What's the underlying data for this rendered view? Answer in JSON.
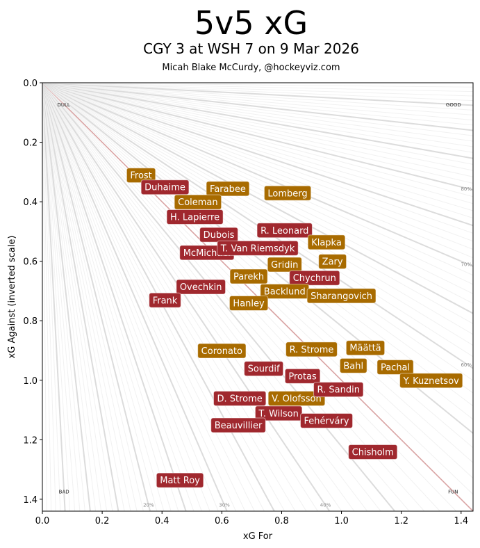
{
  "chart_data": {
    "type": "scatter",
    "title": "5v5 xG",
    "subtitle": "CGY 3 at WSH 7 on 9 Mar 2026",
    "credit": "Micah Blake McCurdy, @hockeyviz.com",
    "xlabel": "xG For",
    "ylabel": "xG Against (inverted scale)",
    "xlim": [
      0,
      1.44
    ],
    "ylim": [
      0,
      1.44
    ],
    "y_inverted": true,
    "xticks": [
      "0.0",
      "0.2",
      "0.4",
      "0.6",
      "0.8",
      "1.0",
      "1.2",
      "1.4"
    ],
    "yticks": [
      "0.0",
      "0.2",
      "0.4",
      "0.6",
      "0.8",
      "1.0",
      "1.2",
      "1.4"
    ],
    "corner_labels": {
      "top_left": "DULL",
      "top_right": "GOOD",
      "bottom_left": "BAD",
      "bottom_right": "FUN"
    },
    "share_labels": {
      "bottom": [
        "20%",
        "30%",
        "40%"
      ],
      "right": [
        "80%",
        "70%",
        "60%"
      ]
    },
    "teams": [
      {
        "name": "CGY",
        "color": "#A86B00"
      },
      {
        "name": "WSH",
        "color": "#A0282E"
      }
    ],
    "points": [
      {
        "name": "Frost",
        "team": "CGY",
        "x": 0.33,
        "y": 0.31
      },
      {
        "name": "Duhaime",
        "team": "WSH",
        "x": 0.41,
        "y": 0.35
      },
      {
        "name": "Farabee",
        "team": "CGY",
        "x": 0.62,
        "y": 0.355
      },
      {
        "name": "Lomberg",
        "team": "CGY",
        "x": 0.82,
        "y": 0.37
      },
      {
        "name": "Coleman",
        "team": "CGY",
        "x": 0.52,
        "y": 0.4
      },
      {
        "name": "H. Lapierre",
        "team": "WSH",
        "x": 0.51,
        "y": 0.45
      },
      {
        "name": "R. Leonard",
        "team": "WSH",
        "x": 0.81,
        "y": 0.495
      },
      {
        "name": "Dubois",
        "team": "WSH",
        "x": 0.59,
        "y": 0.51
      },
      {
        "name": "Klapka",
        "team": "CGY",
        "x": 0.95,
        "y": 0.535
      },
      {
        "name": "McMichael",
        "team": "WSH",
        "x": 0.55,
        "y": 0.57
      },
      {
        "name": "T. Van Riemsdyk",
        "team": "WSH",
        "x": 0.72,
        "y": 0.555
      },
      {
        "name": "Gridin",
        "team": "CGY",
        "x": 0.81,
        "y": 0.61
      },
      {
        "name": "Zary",
        "team": "CGY",
        "x": 0.97,
        "y": 0.6
      },
      {
        "name": "Parekh",
        "team": "CGY",
        "x": 0.69,
        "y": 0.65
      },
      {
        "name": "Chychrun",
        "team": "WSH",
        "x": 0.91,
        "y": 0.655
      },
      {
        "name": "Ovechkin",
        "team": "WSH",
        "x": 0.53,
        "y": 0.685
      },
      {
        "name": "Backlund",
        "team": "CGY",
        "x": 0.81,
        "y": 0.7
      },
      {
        "name": "Sharangovich",
        "team": "CGY",
        "x": 1.0,
        "y": 0.715
      },
      {
        "name": "Frank",
        "team": "WSH",
        "x": 0.41,
        "y": 0.73
      },
      {
        "name": "Hanley",
        "team": "CGY",
        "x": 0.69,
        "y": 0.74
      },
      {
        "name": "Coronato",
        "team": "CGY",
        "x": 0.6,
        "y": 0.9
      },
      {
        "name": "R. Strome",
        "team": "CGY",
        "x": 0.9,
        "y": 0.895
      },
      {
        "name": "Määttä",
        "team": "CGY",
        "x": 1.08,
        "y": 0.89
      },
      {
        "name": "Bahl",
        "team": "CGY",
        "x": 1.04,
        "y": 0.95
      },
      {
        "name": "Sourdif",
        "team": "WSH",
        "x": 0.74,
        "y": 0.96
      },
      {
        "name": "Pachal",
        "team": "CGY",
        "x": 1.18,
        "y": 0.955
      },
      {
        "name": "Protas",
        "team": "WSH",
        "x": 0.87,
        "y": 0.985
      },
      {
        "name": "Y. Kuznetsov",
        "team": "CGY",
        "x": 1.3,
        "y": 1.0
      },
      {
        "name": "V. Olofsson",
        "team": "CGY",
        "x": 0.85,
        "y": 1.06
      },
      {
        "name": "R. Sandin",
        "team": "WSH",
        "x": 0.99,
        "y": 1.03
      },
      {
        "name": "D. Strome",
        "team": "WSH",
        "x": 0.66,
        "y": 1.06
      },
      {
        "name": "T. Wilson",
        "team": "WSH",
        "x": 0.79,
        "y": 1.11
      },
      {
        "name": "Fehérváry",
        "team": "WSH",
        "x": 0.95,
        "y": 1.135
      },
      {
        "name": "Beauvillier",
        "team": "WSH",
        "x": 0.655,
        "y": 1.15
      },
      {
        "name": "Chisholm",
        "team": "WSH",
        "x": 1.105,
        "y": 1.24
      },
      {
        "name": "Matt Roy",
        "team": "WSH",
        "x": 0.46,
        "y": 1.335
      }
    ]
  }
}
